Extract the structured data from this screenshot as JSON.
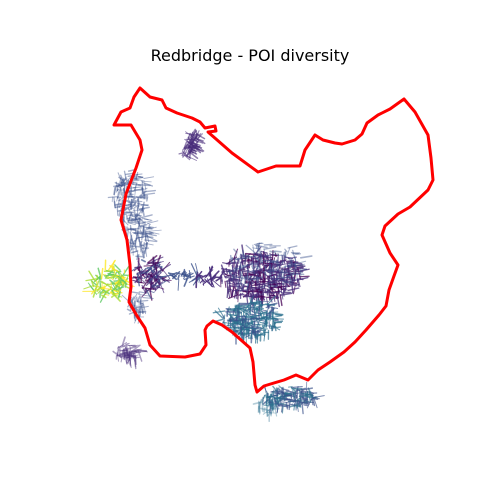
{
  "figure": {
    "title": "Redbridge - POI diversity"
  },
  "map": {
    "boundary_color": "#ff0000",
    "background": "#ffffff",
    "colormap": "viridis",
    "network_colors": [
      "#440154",
      "#472c7a",
      "#3b518b",
      "#2c718e",
      "#21908d",
      "#27ad81",
      "#5cc863",
      "#aadc32",
      "#fde725"
    ]
  }
}
